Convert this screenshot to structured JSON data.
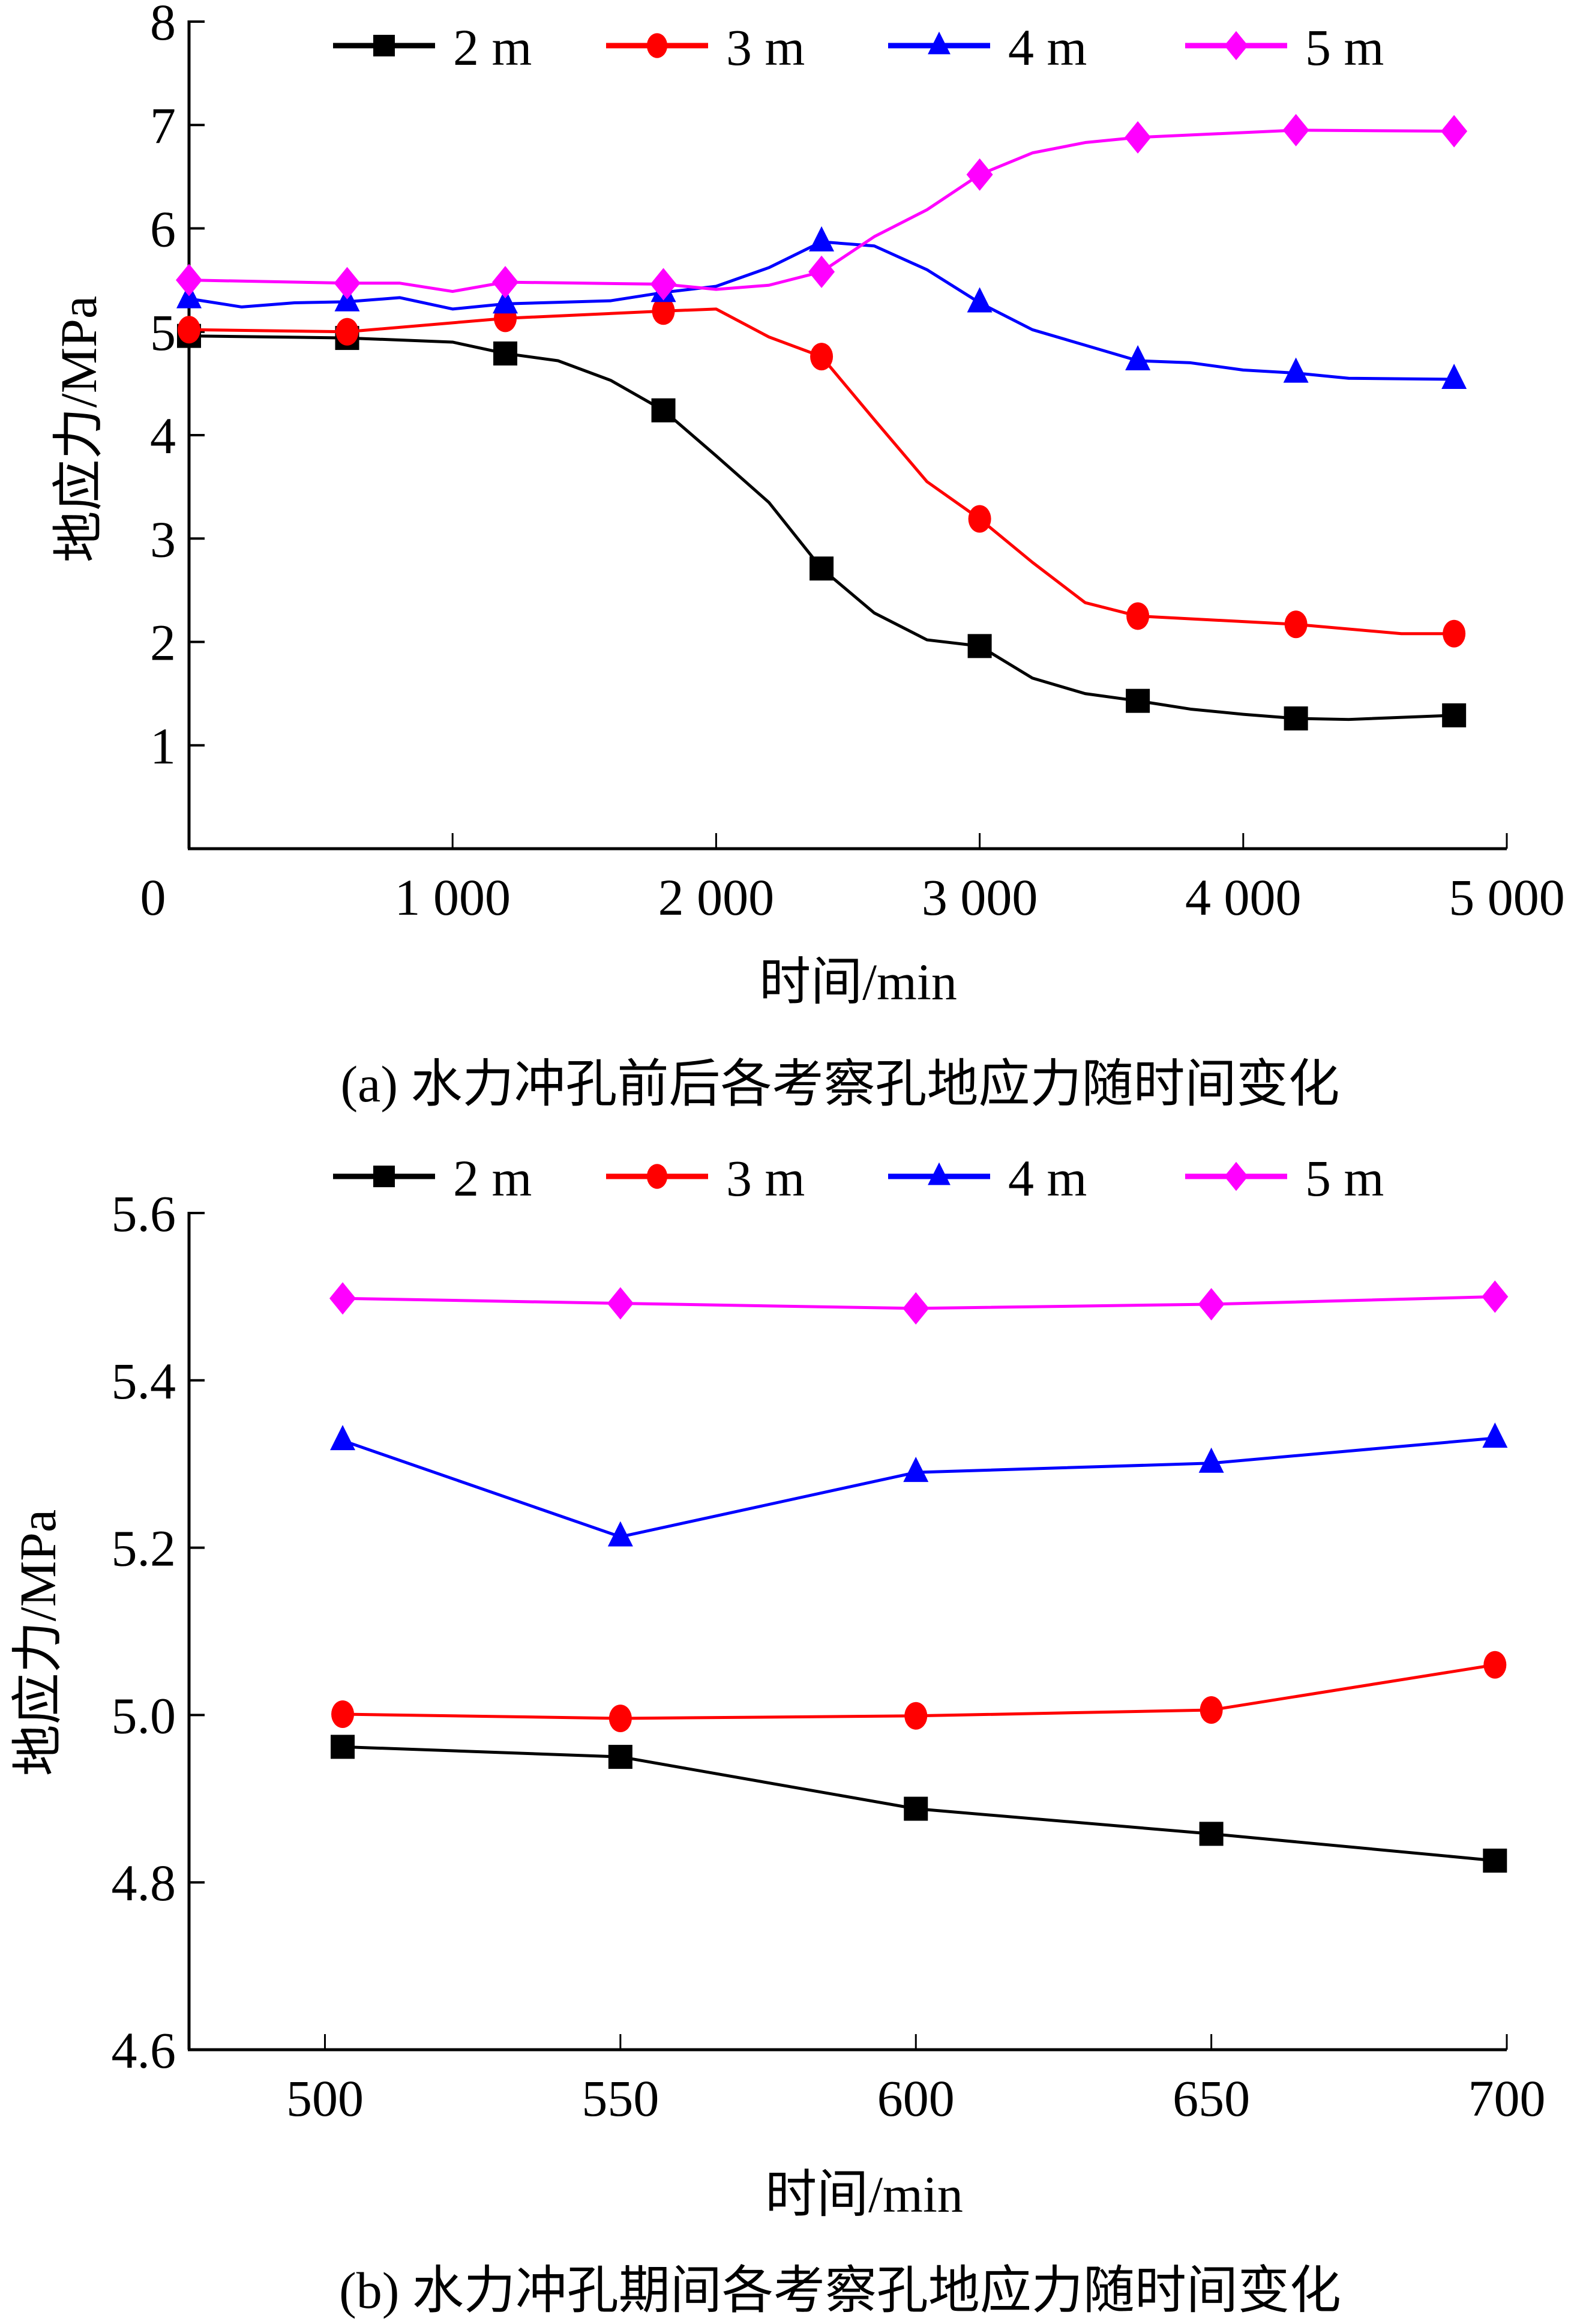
{
  "colors": {
    "2 m": "#000000",
    "3 m": "#ff0000",
    "4 m": "#0000ff",
    "5 m": "#ff00ff"
  },
  "chart_data": [
    {
      "type": "line",
      "caption": "(a) 水力冲孔前后各考察孔地应力随时间变化",
      "xlabel": "时间/min",
      "ylabel": "地应力/MPa",
      "xlim": [
        0,
        5000
      ],
      "ylim": [
        0,
        8
      ],
      "xticks": [
        0,
        1000,
        2000,
        3000,
        4000,
        5000
      ],
      "xtick_labels": [
        "0",
        "1 000",
        "2 000",
        "3 000",
        "4 000",
        "5 000"
      ],
      "yticks": [
        1,
        2,
        3,
        4,
        5,
        6,
        7,
        8
      ],
      "ytick_labels": [
        "1",
        "2",
        "3",
        "4",
        "5",
        "6",
        "7",
        "8"
      ],
      "legend": {
        "position": "top",
        "entries": [
          "2 m",
          "3 m",
          "4 m",
          "5 m"
        ]
      },
      "grid": false,
      "series": [
        {
          "name": "2 m",
          "marker": "square",
          "x": [
            0,
            600,
            1000,
            1200,
            1400,
            1600,
            1800,
            2000,
            2200,
            2400,
            2600,
            2800,
            3000,
            3200,
            3400,
            3600,
            3800,
            4000,
            4200,
            4400,
            4800
          ],
          "y": [
            4.96,
            4.94,
            4.9,
            4.79,
            4.72,
            4.53,
            4.24,
            3.8,
            3.35,
            2.71,
            2.28,
            2.02,
            1.96,
            1.65,
            1.5,
            1.43,
            1.35,
            1.3,
            1.26,
            1.25,
            1.29
          ],
          "marker_x": [
            0,
            600,
            1200,
            1800,
            2400,
            3000,
            3600,
            4200,
            4800
          ]
        },
        {
          "name": "3 m",
          "marker": "circle",
          "x": [
            0,
            600,
            1200,
            1800,
            2000,
            2200,
            2400,
            2600,
            2800,
            3000,
            3200,
            3400,
            3600,
            4200,
            4600,
            4800
          ],
          "y": [
            5.02,
            5.0,
            5.13,
            5.2,
            5.22,
            4.95,
            4.76,
            4.15,
            3.55,
            3.19,
            2.77,
            2.38,
            2.25,
            2.17,
            2.08,
            2.08
          ],
          "marker_x": [
            0,
            600,
            1200,
            1800,
            2400,
            3000,
            3600,
            4200,
            4800
          ]
        },
        {
          "name": "4 m",
          "marker": "triangle",
          "x": [
            0,
            200,
            400,
            600,
            800,
            1000,
            1200,
            1600,
            1800,
            2000,
            2200,
            2400,
            2600,
            2800,
            3000,
            3200,
            3400,
            3600,
            3800,
            4000,
            4200,
            4400,
            4800
          ],
          "y": [
            5.32,
            5.24,
            5.28,
            5.29,
            5.33,
            5.22,
            5.27,
            5.3,
            5.38,
            5.44,
            5.62,
            5.87,
            5.83,
            5.6,
            5.28,
            5.02,
            4.87,
            4.72,
            4.7,
            4.63,
            4.6,
            4.55,
            4.54
          ],
          "marker_x": [
            0,
            600,
            1200,
            1800,
            2400,
            3000,
            3600,
            4200,
            4800
          ]
        },
        {
          "name": "5 m",
          "marker": "diamond",
          "x": [
            0,
            600,
            800,
            1000,
            1200,
            1800,
            2000,
            2200,
            2400,
            2600,
            2800,
            3000,
            3200,
            3400,
            3600,
            4200,
            4800
          ],
          "y": [
            5.5,
            5.47,
            5.47,
            5.39,
            5.48,
            5.46,
            5.41,
            5.45,
            5.58,
            5.92,
            6.18,
            6.52,
            6.73,
            6.83,
            6.88,
            6.95,
            6.94
          ],
          "marker_x": [
            0,
            600,
            1200,
            1800,
            2400,
            3000,
            3600,
            4200,
            4800
          ]
        }
      ]
    },
    {
      "type": "line",
      "caption": "(b) 水力冲孔期间各考察孔地应力随时间变化",
      "xlabel": "时间/min",
      "ylabel": "地应力/MPa",
      "xlim": [
        477,
        700
      ],
      "ylim": [
        4.6,
        5.6
      ],
      "xticks": [
        500,
        550,
        600,
        650,
        700
      ],
      "xtick_labels": [
        "500",
        "550",
        "600",
        "650",
        "700"
      ],
      "yticks": [
        4.6,
        4.8,
        5.0,
        5.2,
        5.4,
        5.6
      ],
      "ytick_labels": [
        "4.6",
        "4.8",
        "5.0",
        "5.2",
        "5.4",
        "5.6"
      ],
      "legend": {
        "position": "top",
        "entries": [
          "2 m",
          "3 m",
          "4 m",
          "5 m"
        ]
      },
      "grid": false,
      "series": [
        {
          "name": "2 m",
          "marker": "square",
          "x": [
            503,
            550,
            600,
            650,
            698
          ],
          "y": [
            4.962,
            4.95,
            4.888,
            4.858,
            4.826
          ],
          "marker_x": [
            503,
            550,
            600,
            650,
            698
          ]
        },
        {
          "name": "3 m",
          "marker": "circle",
          "x": [
            503,
            550,
            600,
            650,
            698
          ],
          "y": [
            5.001,
            4.996,
            4.999,
            5.006,
            5.06
          ],
          "marker_x": [
            503,
            550,
            600,
            650,
            698
          ]
        },
        {
          "name": "4 m",
          "marker": "triangle",
          "x": [
            503,
            550,
            600,
            650,
            698
          ],
          "y": [
            5.328,
            5.213,
            5.29,
            5.301,
            5.331
          ],
          "marker_x": [
            503,
            550,
            600,
            650,
            698
          ]
        },
        {
          "name": "5 m",
          "marker": "diamond",
          "x": [
            503,
            550,
            600,
            650,
            698
          ],
          "y": [
            5.498,
            5.492,
            5.486,
            5.491,
            5.5
          ],
          "marker_x": [
            503,
            550,
            600,
            650,
            698
          ]
        }
      ]
    }
  ]
}
